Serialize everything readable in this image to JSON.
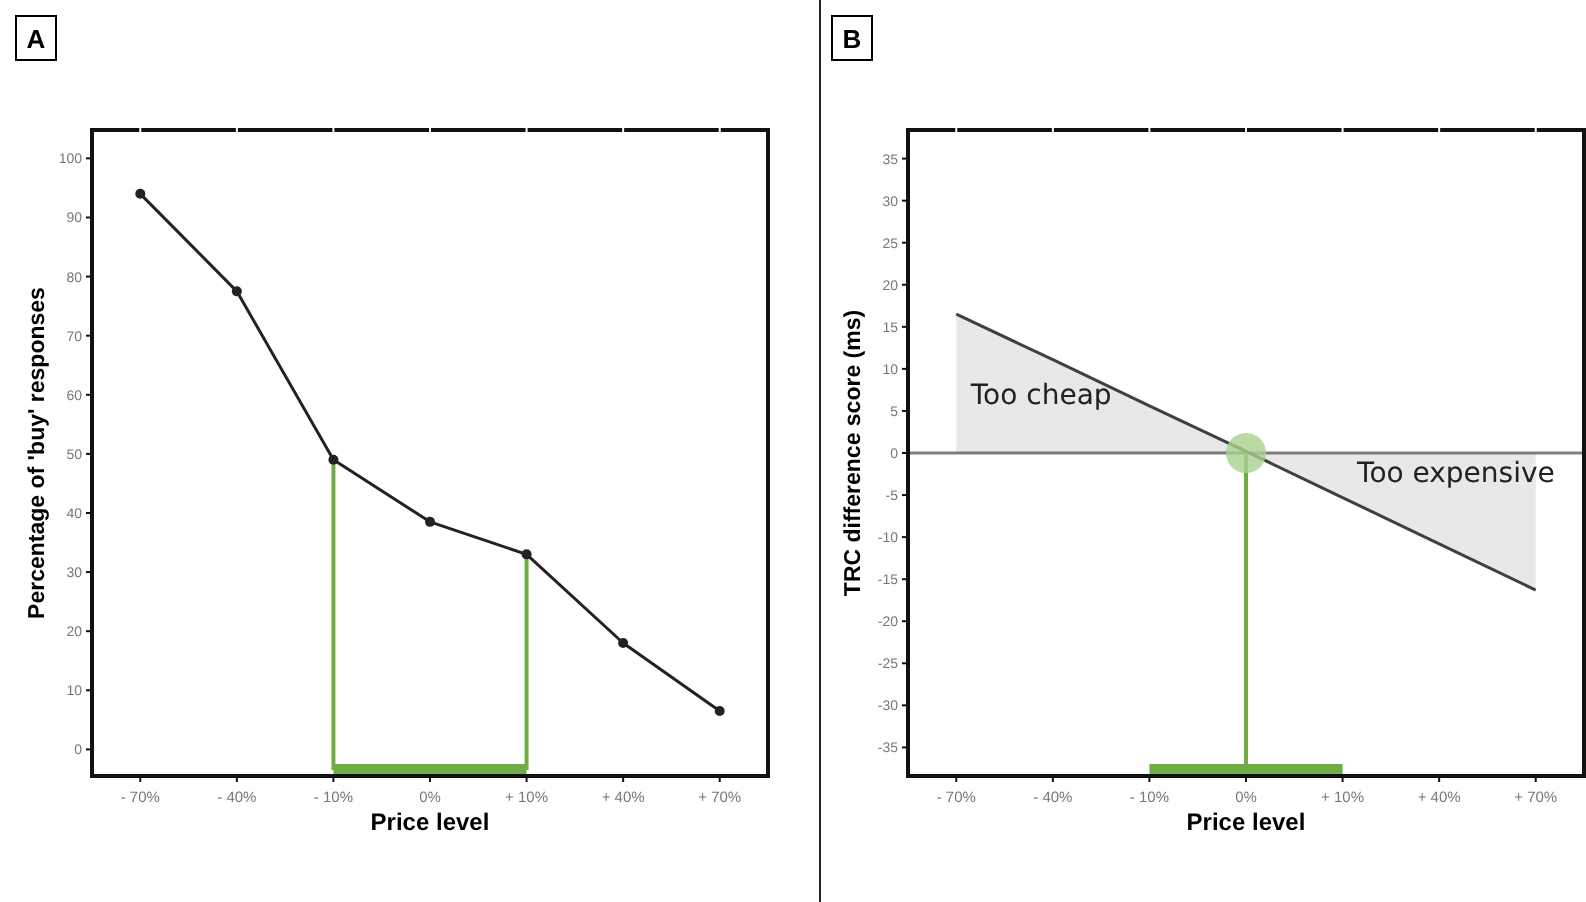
{
  "chart_data": [
    {
      "type": "line",
      "title": "A",
      "xlabel": "Price level",
      "ylabel": "Percentage of 'buy' responses",
      "categories": [
        "- 70%",
        "- 40%",
        "- 10%",
        "0%",
        "+ 10%",
        "+ 40%",
        "+ 70%"
      ],
      "series": [
        {
          "color": "#222222",
          "values": [
            94,
            77.5,
            49,
            38.5,
            33,
            18,
            6.5
          ]
        }
      ],
      "ylim": [
        -4.5,
        104.8
      ],
      "yticks": [
        0,
        10,
        20,
        30,
        40,
        50,
        60,
        70,
        80,
        90,
        100
      ],
      "marker": "circle",
      "grid": false,
      "ref_lines": [
        {
          "axis": "x",
          "value": "- 10%",
          "color": "#70ad47"
        },
        {
          "axis": "x",
          "value": "+ 10%",
          "color": "#70ad47"
        }
      ]
    },
    {
      "type": "area",
      "title": "B",
      "xlabel": "Price level",
      "ylabel": "TRC difference score (ms)",
      "categories": [
        "- 70%",
        "- 40%",
        "- 10%",
        "0%",
        "+ 10%",
        "+ 40%",
        "+ 70%"
      ],
      "series": [
        {
          "color": "#404040",
          "values": [
            16.5,
            11.1,
            5.6,
            0.2,
            -5.3,
            -10.8,
            -16.3
          ]
        },
        {
          "type": "scatter",
          "color": "#a9d18e",
          "values": [
            null,
            null,
            null,
            0,
            null,
            null,
            null
          ]
        }
      ],
      "ylim": [
        -38.4,
        38.4
      ],
      "yticks": [
        -35,
        -30,
        -25,
        -20,
        -15,
        -10,
        -5,
        0,
        5,
        10,
        15,
        20,
        25,
        30,
        35
      ],
      "grid": false,
      "annotations": [
        "Too cheap",
        "Too expensive"
      ],
      "ref_lines": [
        {
          "axis": "y",
          "value": 0,
          "color": "#808080"
        },
        {
          "axis": "x",
          "value": "0%",
          "color": "#70ad47"
        }
      ]
    }
  ]
}
